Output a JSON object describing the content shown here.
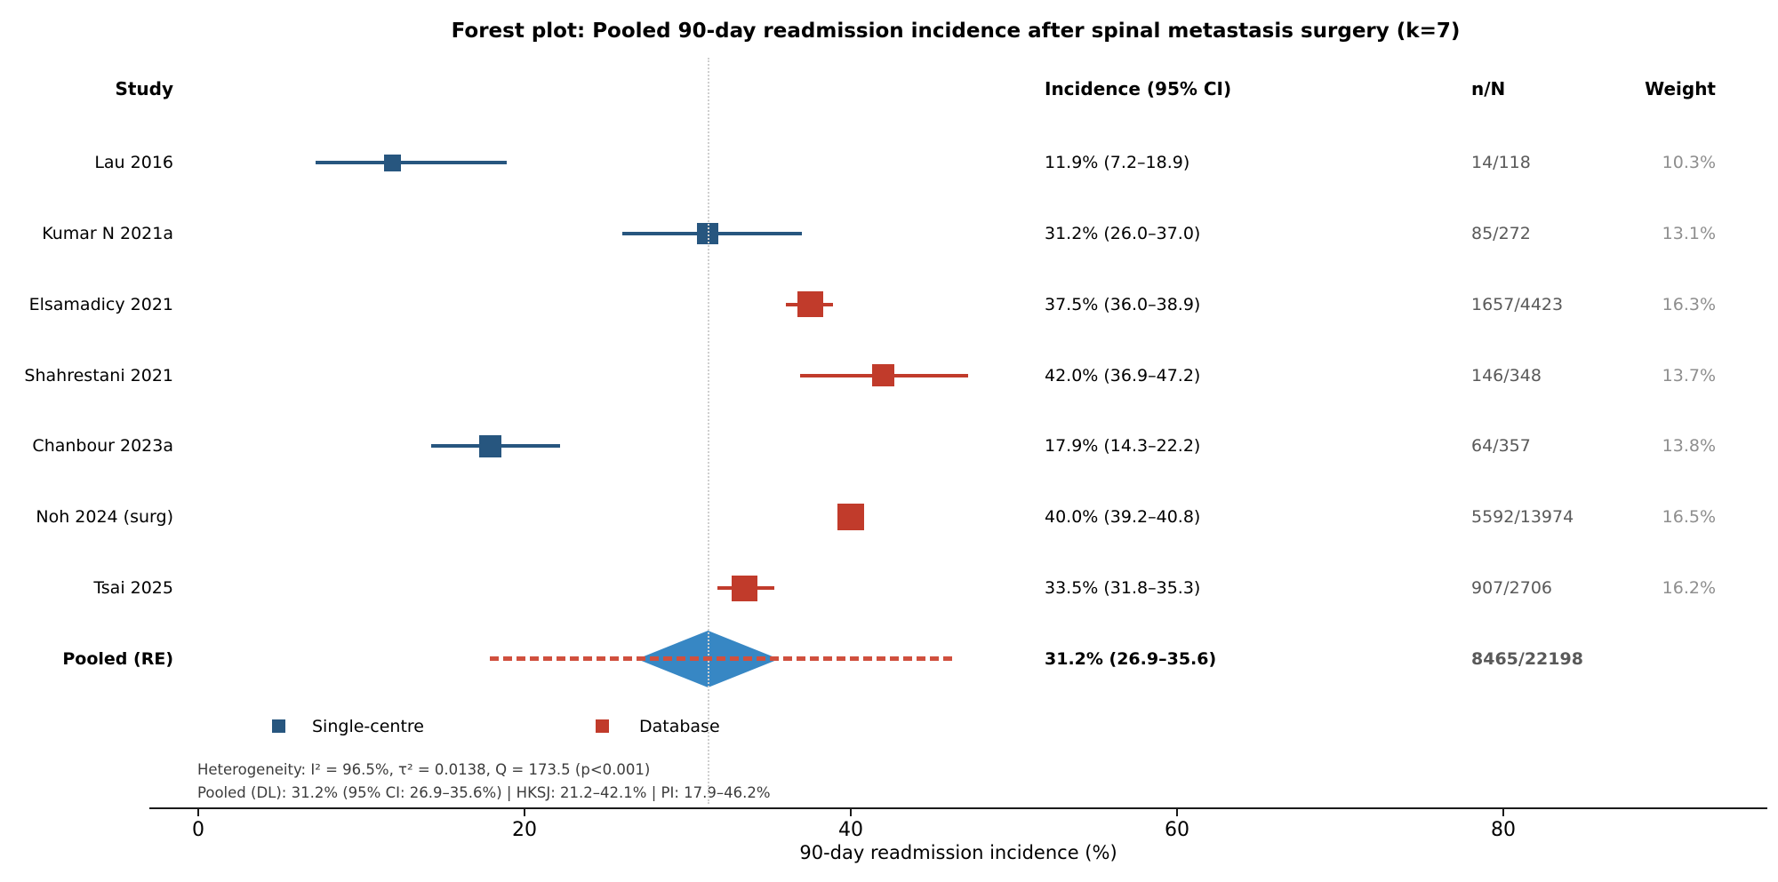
{
  "title": "Forest plot: Pooled 90-day readmission incidence after spinal metastasis surgery (k=7)",
  "columns": {
    "study": "Study",
    "incidence": "Incidence (95% CI)",
    "nN": "n/N",
    "weight": "Weight"
  },
  "colors": {
    "single_centre": "#27567f",
    "database": "#c13b2b",
    "diamond": "#3787c4",
    "pi_line": "#d0503e",
    "ref_line": "#cfcfcf",
    "nN_text": "#595959",
    "weight_text": "#8e8e8e",
    "footnote_text": "#3c3c3c"
  },
  "chart_data": {
    "type": "scatter",
    "subtype": "forest-plot",
    "x_axis": {
      "label": "90-day readmission incidence (%)",
      "ticks": [
        0,
        20,
        40,
        60,
        80
      ],
      "range": [
        -3,
        96.2
      ]
    },
    "reference_line_at": 31.2,
    "studies": [
      {
        "name": "Lau 2016",
        "group": "single-centre",
        "estimate": 11.9,
        "ci_low": 7.2,
        "ci_high": 18.9,
        "incidence_label": "11.9% (7.2–18.9)",
        "nN": "14/118",
        "weight": 10.3,
        "weight_label": "10.3%"
      },
      {
        "name": "Kumar N 2021a",
        "group": "single-centre",
        "estimate": 31.2,
        "ci_low": 26.0,
        "ci_high": 37.0,
        "incidence_label": "31.2% (26.0–37.0)",
        "nN": "85/272",
        "weight": 13.1,
        "weight_label": "13.1%"
      },
      {
        "name": "Elsamadicy 2021",
        "group": "database",
        "estimate": 37.5,
        "ci_low": 36.0,
        "ci_high": 38.9,
        "incidence_label": "37.5% (36.0–38.9)",
        "nN": "1657/4423",
        "weight": 16.3,
        "weight_label": "16.3%"
      },
      {
        "name": "Shahrestani 2021",
        "group": "database",
        "estimate": 42.0,
        "ci_low": 36.9,
        "ci_high": 47.2,
        "incidence_label": "42.0% (36.9–47.2)",
        "nN": "146/348",
        "weight": 13.7,
        "weight_label": "13.7%"
      },
      {
        "name": "Chanbour 2023a",
        "group": "single-centre",
        "estimate": 17.9,
        "ci_low": 14.3,
        "ci_high": 22.2,
        "incidence_label": "17.9% (14.3–22.2)",
        "nN": "64/357",
        "weight": 13.8,
        "weight_label": "13.8%"
      },
      {
        "name": "Noh 2024 (surg)",
        "group": "database",
        "estimate": 40.0,
        "ci_low": 39.2,
        "ci_high": 40.8,
        "incidence_label": "40.0% (39.2–40.8)",
        "nN": "5592/13974",
        "weight": 16.5,
        "weight_label": "16.5%"
      },
      {
        "name": "Tsai 2025",
        "group": "database",
        "estimate": 33.5,
        "ci_low": 31.8,
        "ci_high": 35.3,
        "incidence_label": "33.5% (31.8–35.3)",
        "nN": "907/2706",
        "weight": 16.2,
        "weight_label": "16.2%"
      }
    ],
    "pooled": {
      "name": "Pooled (RE)",
      "estimate": 31.2,
      "ci_low": 26.9,
      "ci_high": 35.6,
      "incidence_label": "31.2% (26.9–35.6)",
      "nN": "8465/22198",
      "pi_low": 17.9,
      "pi_high": 46.2
    },
    "legend": [
      {
        "label": "Single-centre",
        "group": "single-centre"
      },
      {
        "label": "Database",
        "group": "database"
      }
    ],
    "footnotes": [
      "Heterogeneity: I² = 96.5%, τ² = 0.0138, Q = 173.5 (p<0.001)",
      "Pooled (DL): 31.2% (95% CI: 26.9–35.6%) | HKSJ: 21.2–42.1% | PI: 17.9–46.2%"
    ]
  }
}
